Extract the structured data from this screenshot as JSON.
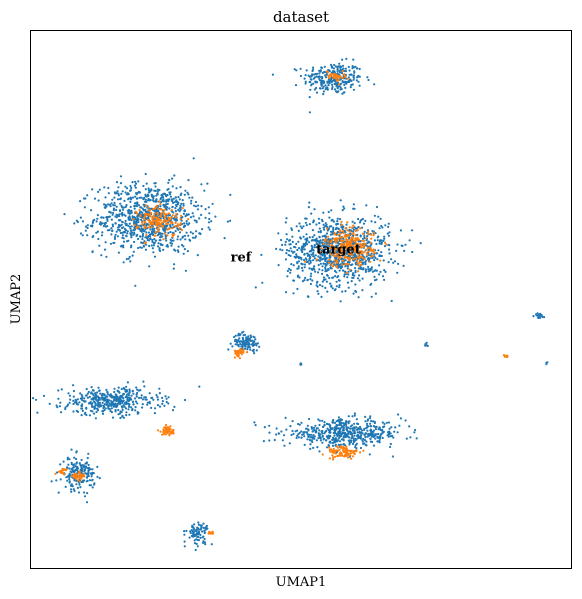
{
  "chart_data": {
    "type": "scatter",
    "title": "dataset",
    "xlabel": "UMAP1",
    "ylabel": "UMAP2",
    "xlim": [
      0,
      100
    ],
    "ylim": [
      0,
      100
    ],
    "grid": false,
    "x_ticks": false,
    "y_ticks": false,
    "legend": "on data",
    "series": [
      {
        "name": "ref",
        "color": "#1f77b4",
        "clusters": [
          {
            "center": [
              56,
              91
            ],
            "spread": [
              5.5,
              3.0
            ],
            "n": 260
          },
          {
            "center": [
              22,
              65
            ],
            "spread": [
              10.0,
              6.5
            ],
            "n": 900
          },
          {
            "center": [
              57,
              59
            ],
            "spread": [
              9.5,
              6.5
            ],
            "n": 950
          },
          {
            "center": [
              40,
              42
            ],
            "spread": [
              2.5,
              1.6
            ],
            "n": 110
          },
          {
            "center": [
              15,
              31
            ],
            "spread": [
              9.0,
              2.5
            ],
            "n": 420
          },
          {
            "center": [
              58,
              25
            ],
            "spread": [
              11.0,
              2.5
            ],
            "n": 520
          },
          {
            "center": [
              9,
              17.5
            ],
            "spread": [
              3.0,
              3.0
            ],
            "n": 180
          },
          {
            "center": [
              31,
              6.5
            ],
            "spread": [
              2.0,
              2.0
            ],
            "n": 80
          },
          {
            "center": [
              94,
              47
            ],
            "spread": [
              1.0,
              0.6
            ],
            "n": 18
          },
          {
            "center": [
              73,
              41.5
            ],
            "spread": [
              0.6,
              0.4
            ],
            "n": 8
          },
          {
            "center": [
              50,
              38
            ],
            "spread": [
              0.3,
              0.3
            ],
            "n": 4
          },
          {
            "center": [
              95.5,
              38
            ],
            "spread": [
              0.3,
              0.3
            ],
            "n": 3
          }
        ]
      },
      {
        "name": "target",
        "color": "#ff7f0e",
        "clusters": [
          {
            "center": [
              56.5,
              91.5
            ],
            "spread": [
              1.8,
              1.0
            ],
            "n": 40
          },
          {
            "center": [
              24,
              64.5
            ],
            "spread": [
              4.0,
              3.0
            ],
            "n": 160
          },
          {
            "center": [
              59,
              59.5
            ],
            "spread": [
              4.5,
              3.5
            ],
            "n": 280
          },
          {
            "center": [
              38.5,
              40
            ],
            "spread": [
              1.0,
              0.7
            ],
            "n": 45
          },
          {
            "center": [
              25.5,
              25.5
            ],
            "spread": [
              1.2,
              0.8
            ],
            "n": 50
          },
          {
            "center": [
              58,
              21.5
            ],
            "spread": [
              3.0,
              1.2
            ],
            "n": 90
          },
          {
            "center": [
              9,
              17
            ],
            "spread": [
              1.2,
              1.0
            ],
            "n": 30
          },
          {
            "center": [
              6,
              18
            ],
            "spread": [
              1.0,
              0.5
            ],
            "n": 20
          },
          {
            "center": [
              33.5,
              6.5
            ],
            "spread": [
              0.8,
              0.3
            ],
            "n": 12
          },
          {
            "center": [
              88,
              39.5
            ],
            "spread": [
              0.5,
              0.4
            ],
            "n": 6
          }
        ]
      }
    ],
    "on_data_labels": [
      {
        "text": "ref",
        "x": 39,
        "y": 57
      },
      {
        "text": "target",
        "x": 57,
        "y": 58.5
      }
    ]
  }
}
